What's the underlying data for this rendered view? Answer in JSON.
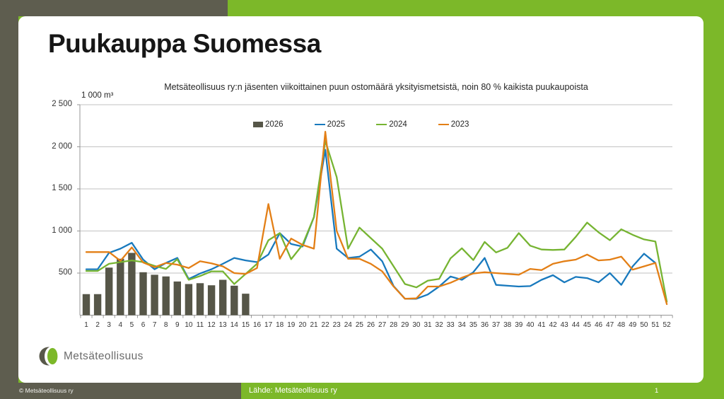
{
  "page": {
    "title": "Puukauppa Suomessa",
    "logo_text": "Metsäteollisuus",
    "footer": {
      "copyright": "© Metsäteollisuus ry",
      "source": "Lähde: Metsäteollisuus ry",
      "page_number": "1"
    }
  },
  "colors": {
    "brand_green": "#7cb829",
    "brand_dark": "#5e5d4f",
    "bar_2026": "#565648",
    "line_2025": "#1879bd",
    "line_2024": "#76b432",
    "line_2023": "#e37f16",
    "gridline": "#c2c2c2",
    "axis": "#959595"
  },
  "chart_data": {
    "type": "bar+line combo",
    "title": "Metsäteollisuus ry:n jäsenten viikoittainen puun ostomäärä yksityismetsistä, noin 80 % kaikista puukaupoista",
    "unit_label": "1 000 m³",
    "xlabel": "",
    "ylabel": "1 000 m³",
    "ylim": [
      0,
      2500
    ],
    "grid": true,
    "legend_position": "top-center",
    "x_weeks": [
      1,
      2,
      3,
      4,
      5,
      6,
      7,
      8,
      9,
      10,
      11,
      12,
      13,
      14,
      15,
      16,
      17,
      18,
      19,
      20,
      21,
      22,
      23,
      24,
      25,
      26,
      27,
      28,
      29,
      30,
      31,
      32,
      33,
      34,
      35,
      36,
      37,
      38,
      39,
      40,
      41,
      42,
      43,
      44,
      45,
      46,
      47,
      48,
      49,
      50,
      51,
      52
    ],
    "y_ticks": [
      {
        "label": "2 500",
        "value": 2500
      },
      {
        "label": "2 000",
        "value": 2000
      },
      {
        "label": "1 500",
        "value": 1500
      },
      {
        "label": "1 000",
        "value": 1000
      },
      {
        "label": "500",
        "value": 500
      }
    ],
    "legend": [
      {
        "label": "2026",
        "type": "bar",
        "color": "#565648"
      },
      {
        "label": "2025",
        "type": "line",
        "color": "#1879bd"
      },
      {
        "label": "2024",
        "type": "line",
        "color": "#76b432"
      },
      {
        "label": "2023",
        "type": "line",
        "color": "#e37f16"
      }
    ],
    "series": [
      {
        "name": "2026",
        "type": "bar",
        "color": "#565648",
        "values": [
          250,
          250,
          565,
          670,
          740,
          510,
          480,
          460,
          400,
          370,
          380,
          355,
          420,
          350,
          255
        ]
      },
      {
        "name": "2025",
        "type": "line",
        "color": "#1879bd",
        "values": [
          545,
          545,
          740,
          790,
          860,
          660,
          545,
          620,
          680,
          430,
          495,
          545,
          610,
          680,
          650,
          630,
          720,
          975,
          845,
          815,
          1165,
          1965,
          790,
          680,
          695,
          780,
          640,
          345,
          195,
          195,
          245,
          340,
          460,
          420,
          510,
          680,
          360,
          350,
          340,
          345,
          420,
          475,
          390,
          455,
          440,
          390,
          500,
          360,
          580,
          730,
          620,
          null
        ]
      },
      {
        "name": "2024",
        "type": "line",
        "color": "#76b432",
        "values": [
          525,
          525,
          610,
          630,
          650,
          630,
          585,
          550,
          665,
          420,
          465,
          520,
          520,
          370,
          490,
          610,
          890,
          975,
          665,
          835,
          1165,
          2070,
          1640,
          790,
          1040,
          915,
          790,
          580,
          370,
          330,
          410,
          430,
          675,
          795,
          655,
          870,
          745,
          800,
          975,
          825,
          780,
          775,
          780,
          930,
          1100,
          985,
          890,
          1020,
          955,
          900,
          875,
          160
        ]
      },
      {
        "name": "2023",
        "type": "line",
        "color": "#e37f16",
        "values": [
          750,
          750,
          750,
          645,
          805,
          625,
          570,
          620,
          600,
          560,
          640,
          615,
          580,
          500,
          490,
          560,
          1320,
          670,
          910,
          835,
          790,
          2180,
          1000,
          670,
          670,
          610,
          520,
          340,
          195,
          200,
          340,
          340,
          385,
          445,
          495,
          510,
          500,
          490,
          480,
          550,
          535,
          610,
          640,
          660,
          720,
          650,
          660,
          695,
          540,
          580,
          620,
          130
        ]
      }
    ]
  }
}
